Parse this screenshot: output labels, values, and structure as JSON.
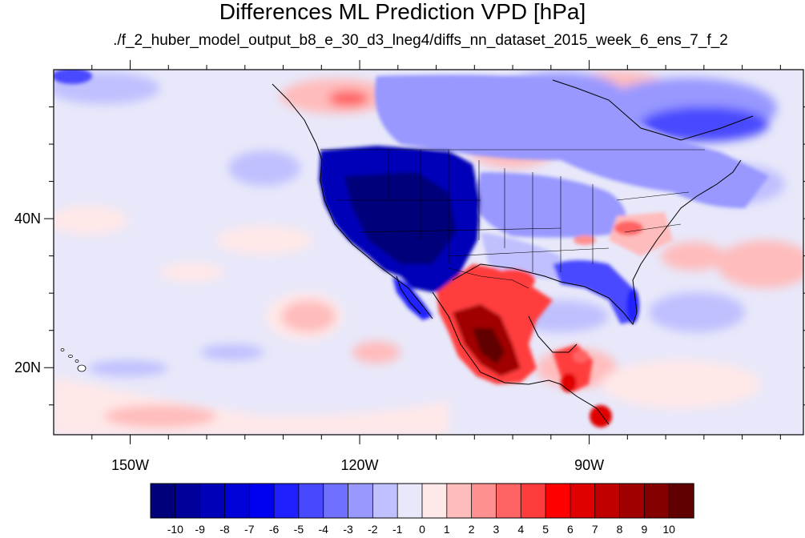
{
  "figure": {
    "title": "Differences ML Prediction VPD [hPa]",
    "subtitle": "./f_2_huber_model_output_b8_e_30_d3_lneg4/diffs_nn_dataset_2015_week_6_ens_7_f_2"
  },
  "map": {
    "projection": "cylindrical-equidistant",
    "lon_range": [
      -160,
      -62
    ],
    "lat_range": [
      11,
      60
    ],
    "lat_ticks": [
      {
        "value": 40,
        "label": "40N"
      },
      {
        "value": 20,
        "label": "20N"
      }
    ],
    "lon_ticks": [
      {
        "value": -150,
        "label": "150W"
      },
      {
        "value": -120,
        "label": "120W"
      },
      {
        "value": -90,
        "label": "90W"
      }
    ]
  },
  "colorbar": {
    "levels": [
      "-10",
      "-9",
      "-8",
      "-7",
      "-6",
      "-5",
      "-4",
      "-3",
      "-2",
      "-1",
      "0",
      "1",
      "2",
      "3",
      "4",
      "5",
      "6",
      "7",
      "8",
      "9",
      "10"
    ],
    "colors": [
      "#00007a",
      "#00009a",
      "#0000b8",
      "#0000d8",
      "#0000f0",
      "#2020ff",
      "#4848ff",
      "#7070ff",
      "#9898ff",
      "#c0c0ff",
      "#e8e8fa",
      "#ffe8e8",
      "#ffbcbc",
      "#ff9090",
      "#ff6464",
      "#ff3c3c",
      "#ff0000",
      "#e00000",
      "#c00000",
      "#a00000",
      "#840000",
      "#600000"
    ]
  }
}
